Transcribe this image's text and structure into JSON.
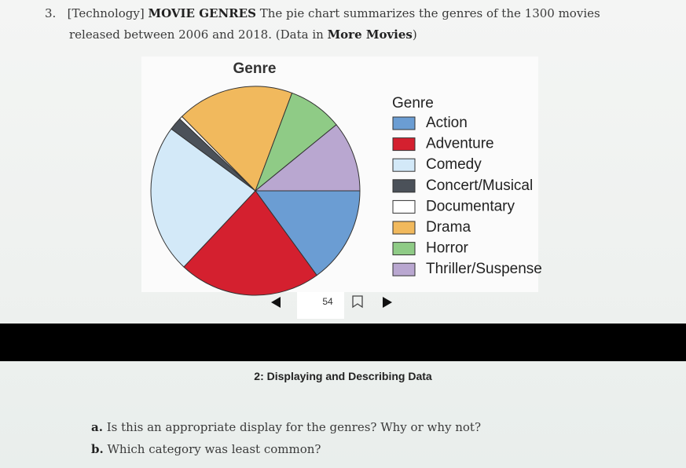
{
  "problem": {
    "number": "3.",
    "tag": "[Technology]",
    "heading": "MOVIE GENRES",
    "text_1": "The pie chart summarizes the genres of the 1300 movies",
    "text_2": "released between 2006 and 2018. (Data in",
    "source": "More Movies",
    "text_3": ")"
  },
  "chart_data": {
    "type": "pie",
    "title": "Genre",
    "legend_title": "Genre",
    "categories": [
      "Action",
      "Adventure",
      "Comedy",
      "Concert/Musical",
      "Documentary",
      "Drama",
      "Horror",
      "Thriller/Suspense"
    ],
    "values": [
      15,
      22,
      23.1,
      2,
      0.5,
      18.1,
      8.4,
      10.9
    ],
    "colors": [
      "#6b9dd3",
      "#d4202f",
      "#d3e9f8",
      "#4b5159",
      "#ffffff",
      "#f1b95d",
      "#8fcb86",
      "#b9a7d0"
    ]
  },
  "page_number": "54",
  "section": "2: Displaying and Describing Data",
  "questions": [
    {
      "label": "a.",
      "text": "Is this an appropriate display for the genres? Why or why not?"
    },
    {
      "label": "b.",
      "text": "Which category was least common?"
    }
  ]
}
